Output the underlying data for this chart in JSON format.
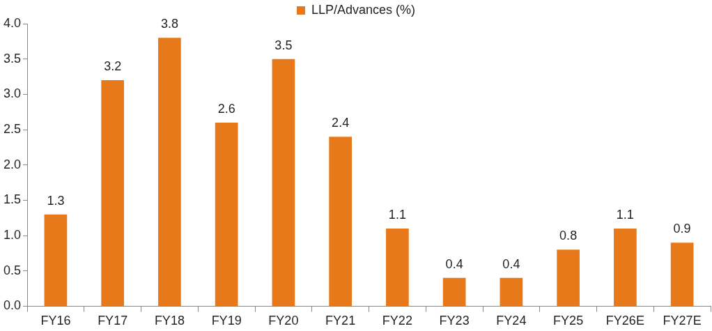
{
  "chart_data": {
    "type": "bar",
    "categories": [
      "FY16",
      "FY17",
      "FY18",
      "FY19",
      "FY20",
      "FY21",
      "FY22",
      "FY23",
      "FY24",
      "FY25",
      "FY26E",
      "FY27E"
    ],
    "series": [
      {
        "name": "LLP/Advances (%)",
        "color": "#e8791a",
        "values": [
          1.3,
          3.2,
          3.8,
          2.6,
          3.5,
          2.4,
          1.1,
          0.4,
          0.4,
          0.8,
          1.1,
          0.9
        ]
      }
    ],
    "ylim": [
      0,
      4
    ],
    "yticks": [
      {
        "value": 0,
        "label": "0.0"
      },
      {
        "value": 0.5,
        "label": "0.5"
      },
      {
        "value": 1,
        "label": "1.0"
      },
      {
        "value": 1.5,
        "label": "1.5"
      },
      {
        "value": 2,
        "label": "2.0"
      },
      {
        "value": 2.5,
        "label": "2.5"
      },
      {
        "value": 3,
        "label": "3.0"
      },
      {
        "value": 3.5,
        "label": "3.5"
      },
      {
        "value": 4,
        "label": "4.0"
      }
    ],
    "grid": false,
    "legend": "top",
    "data_labels": true
  }
}
